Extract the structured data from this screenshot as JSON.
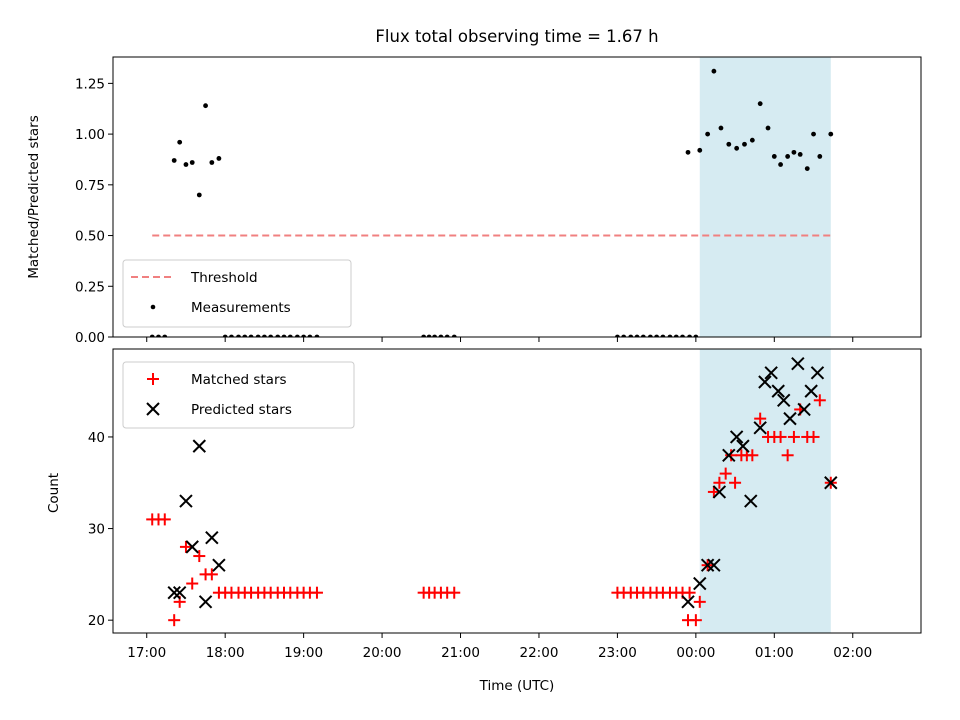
{
  "chart_data": {
    "type": "scatter",
    "title": "Flux total observing time = 1.67 h",
    "shared_x": {
      "label": "Time (UTC)",
      "unit": "hours since 17:00 UTC",
      "range": [
        -0.43,
        9.87
      ],
      "ticks": [
        {
          "value": 0,
          "label": "17:00"
        },
        {
          "value": 1,
          "label": "18:00"
        },
        {
          "value": 2,
          "label": "19:00"
        },
        {
          "value": 3,
          "label": "20:00"
        },
        {
          "value": 4,
          "label": "21:00"
        },
        {
          "value": 5,
          "label": "22:00"
        },
        {
          "value": 6,
          "label": "23:00"
        },
        {
          "value": 7,
          "label": "00:00"
        },
        {
          "value": 8,
          "label": "01:00"
        },
        {
          "value": 9,
          "label": "02:00"
        }
      ]
    },
    "shaded_region": {
      "x_start": 7.05,
      "x_end": 8.72,
      "color": "#add8e6",
      "alpha": 0.5
    },
    "top_panel": {
      "ylabel": "Matched/Predicted stars",
      "ylim": [
        0.0,
        1.38
      ],
      "yticks": [
        {
          "value": 0.0,
          "label": "0.00"
        },
        {
          "value": 0.25,
          "label": "0.25"
        },
        {
          "value": 0.5,
          "label": "0.50"
        },
        {
          "value": 0.75,
          "label": "0.75"
        },
        {
          "value": 1.0,
          "label": "1.00"
        },
        {
          "value": 1.25,
          "label": "1.25"
        }
      ],
      "threshold": {
        "name": "Threshold",
        "value": 0.5,
        "x_start": 0.07,
        "x_end": 8.72,
        "color": "#f08080"
      },
      "measurements": {
        "name": "Measurements",
        "color": "#000000",
        "x": [
          0.07,
          0.15,
          0.23,
          0.35,
          0.42,
          0.5,
          0.58,
          0.67,
          0.75,
          0.83,
          0.92,
          1.0,
          1.08,
          1.17,
          1.25,
          1.33,
          1.42,
          1.5,
          1.58,
          1.67,
          1.75,
          1.83,
          1.92,
          2.0,
          2.08,
          2.17,
          3.53,
          3.6,
          3.67,
          3.75,
          3.83,
          3.92,
          6.0,
          6.08,
          6.17,
          6.25,
          6.33,
          6.42,
          6.5,
          6.58,
          6.67,
          6.75,
          6.83,
          6.92,
          7.0,
          6.9,
          7.05,
          7.15,
          7.23,
          7.32,
          7.42,
          7.52,
          7.62,
          7.72,
          7.82,
          7.92,
          8.0,
          8.08,
          8.17,
          8.25,
          8.33,
          8.42,
          8.5,
          8.58,
          8.72
        ],
        "y": [
          0,
          0,
          0,
          0.87,
          0.96,
          0.85,
          0.86,
          0.7,
          1.14,
          0.86,
          0.88,
          0,
          0,
          0,
          0,
          0,
          0,
          0,
          0,
          0,
          0,
          0,
          0,
          0,
          0,
          0,
          0,
          0,
          0,
          0,
          0,
          0,
          0,
          0,
          0,
          0,
          0,
          0,
          0,
          0,
          0,
          0,
          0,
          0,
          0,
          0.91,
          0.92,
          1.0,
          1.31,
          1.03,
          0.95,
          0.93,
          0.95,
          0.97,
          1.15,
          1.03,
          0.89,
          0.85,
          0.89,
          0.91,
          0.9,
          0.83,
          1.0,
          0.89,
          1.0
        ]
      },
      "legend": {
        "position": "lower left",
        "entries": [
          "Threshold",
          "Measurements"
        ]
      }
    },
    "bottom_panel": {
      "ylabel": "Count",
      "ylim": [
        18.6,
        49.6
      ],
      "yticks": [
        {
          "value": 20,
          "label": "20"
        },
        {
          "value": 30,
          "label": "30"
        },
        {
          "value": 40,
          "label": "40"
        }
      ],
      "series": [
        {
          "name": "Matched stars",
          "marker": "+",
          "color": "#ff0000",
          "x": [
            0.07,
            0.15,
            0.23,
            0.35,
            0.42,
            0.5,
            0.58,
            0.67,
            0.75,
            0.83,
            0.92,
            1.0,
            1.08,
            1.17,
            1.25,
            1.33,
            1.42,
            1.5,
            1.58,
            1.67,
            1.75,
            1.83,
            1.92,
            2.0,
            2.08,
            2.17,
            3.53,
            3.6,
            3.67,
            3.75,
            3.83,
            3.92,
            6.0,
            6.08,
            6.17,
            6.25,
            6.33,
            6.42,
            6.5,
            6.58,
            6.67,
            6.75,
            6.83,
            6.92,
            6.9,
            7.0,
            7.05,
            7.15,
            7.23,
            7.3,
            7.38,
            7.45,
            7.5,
            7.58,
            7.65,
            7.72,
            7.82,
            7.92,
            8.0,
            8.08,
            8.17,
            8.25,
            8.33,
            8.42,
            8.5,
            8.58,
            8.72
          ],
          "y": [
            31,
            31,
            31,
            20,
            22,
            28,
            24,
            27,
            25,
            25,
            23,
            23,
            23,
            23,
            23,
            23,
            23,
            23,
            23,
            23,
            23,
            23,
            23,
            23,
            23,
            23,
            23,
            23,
            23,
            23,
            23,
            23,
            23,
            23,
            23,
            23,
            23,
            23,
            23,
            23,
            23,
            23,
            23,
            23,
            20,
            20,
            22,
            26,
            34,
            35,
            36,
            38,
            35,
            38,
            38,
            38,
            42,
            40,
            40,
            40,
            38,
            40,
            43,
            40,
            40,
            44,
            35
          ]
        },
        {
          "name": "Predicted stars",
          "marker": "x",
          "color": "#000000",
          "x": [
            0.35,
            0.42,
            0.5,
            0.58,
            0.67,
            0.75,
            0.83,
            0.92,
            6.9,
            7.05,
            7.15,
            7.23,
            7.3,
            7.42,
            7.52,
            7.6,
            7.7,
            7.82,
            7.88,
            7.96,
            8.05,
            8.12,
            8.2,
            8.3,
            8.38,
            8.47,
            8.55,
            8.72
          ],
          "y": [
            23,
            23,
            33,
            28,
            39,
            22,
            29,
            26,
            22,
            24,
            26,
            26,
            34,
            38,
            40,
            39,
            33,
            41,
            46,
            47,
            45,
            44,
            42,
            48,
            43,
            45,
            47,
            35
          ]
        }
      ],
      "legend": {
        "position": "upper left",
        "entries": [
          "Matched stars",
          "Predicted stars"
        ]
      }
    }
  }
}
